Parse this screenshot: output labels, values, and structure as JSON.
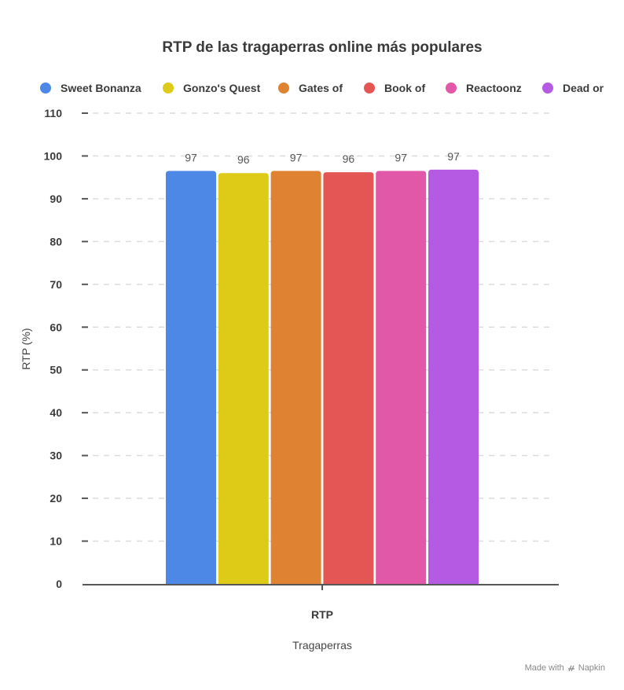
{
  "chart_data": {
    "type": "bar",
    "title": "RTP de las tragaperras online más populares",
    "xlabel": "Tragaperras",
    "ylabel": "RTP (%)",
    "categories": [
      "RTP"
    ],
    "ylim": [
      0,
      110
    ],
    "yticks": [
      0,
      10,
      20,
      30,
      40,
      50,
      60,
      70,
      80,
      90,
      100,
      110
    ],
    "grid": true,
    "legend_position": "top",
    "series": [
      {
        "name": "Sweet Bonanza",
        "values": [
          96.5
        ],
        "label": "97",
        "color": "#4d88e6"
      },
      {
        "name": "Gonzo's Quest",
        "values": [
          96.0
        ],
        "label": "96",
        "color": "#decb17"
      },
      {
        "name": "Gates of",
        "values": [
          96.5
        ],
        "label": "97",
        "color": "#df8232"
      },
      {
        "name": "Book of",
        "values": [
          96.2
        ],
        "label": "96",
        "color": "#e35653"
      },
      {
        "name": "Reactoonz",
        "values": [
          96.5
        ],
        "label": "97",
        "color": "#e058a7"
      },
      {
        "name": "Dead or",
        "values": [
          96.8
        ],
        "label": "97",
        "color": "#b55ae3"
      }
    ]
  },
  "footer": {
    "made_with": "Made with",
    "brand": "Napkin"
  }
}
